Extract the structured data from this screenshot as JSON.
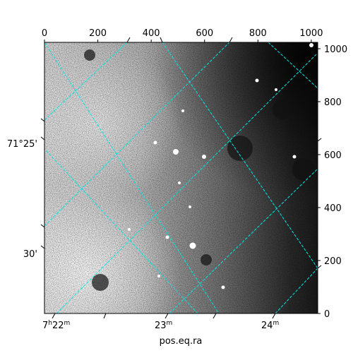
{
  "chart_data": {
    "type": "heatmap",
    "title": "",
    "xlabel": "pos.eq.ra",
    "ylabel": "",
    "colormap": "gray_r",
    "grid": true,
    "grid_color": "#00e5e5",
    "pixel_axes": {
      "top_ticks": [
        0,
        200,
        400,
        600,
        800,
        1000
      ],
      "top_tick_labels": [
        "0",
        "200",
        "400",
        "600",
        "800",
        "1000"
      ],
      "right_ticks": [
        0,
        200,
        400,
        600,
        800,
        1000
      ],
      "right_tick_labels": [
        "0",
        "200",
        "400",
        "600",
        "800",
        "1000"
      ],
      "xlim": [
        0,
        1024
      ],
      "ylim": [
        0,
        1024
      ]
    },
    "world_axes": {
      "bottom_tick_labels": [
        {
          "main": "7",
          "sup1": "h",
          "mid": "22",
          "sup2": "m"
        },
        {
          "main": "",
          "sup1": "",
          "mid": "23",
          "sup2": "m"
        },
        {
          "main": "",
          "sup1": "",
          "mid": "24",
          "sup2": "m"
        }
      ],
      "left_tick_labels": [
        "71°25'",
        "30'"
      ]
    }
  }
}
